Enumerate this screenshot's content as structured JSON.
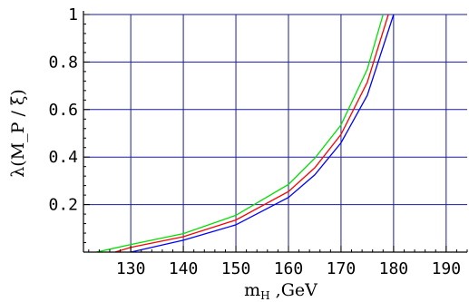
{
  "chart_data": {
    "type": "line",
    "title": "",
    "xlabel": "m_H ,GeV",
    "ylabel": "λ(M_P / ξ)",
    "xlim": [
      121,
      194
    ],
    "ylim": [
      0,
      1
    ],
    "grid": true,
    "colors": {
      "grid": "#1a1aa6",
      "axis": "#000000"
    },
    "x_ticks": [
      130,
      140,
      150,
      160,
      170,
      180,
      190
    ],
    "x_tick_labels": [
      "130",
      "140",
      "150",
      "160",
      "170",
      "180",
      "190"
    ],
    "y_ticks": [
      0.2,
      0.4,
      0.6,
      0.8,
      1
    ],
    "y_tick_labels": [
      "0.2",
      "0.4",
      "0.6",
      "0.8",
      "1"
    ],
    "series": [
      {
        "color": "#00e000",
        "x": [
          123.5,
          130,
          140,
          150,
          160,
          165,
          170,
          175,
          178
        ],
        "y": [
          0.0,
          0.032,
          0.078,
          0.155,
          0.285,
          0.395,
          0.535,
          0.77,
          1.0
        ]
      },
      {
        "color": "#ff0000",
        "x": [
          127,
          130,
          140,
          150,
          160,
          165,
          170,
          175,
          179
        ],
        "y": [
          0.0,
          0.02,
          0.065,
          0.135,
          0.255,
          0.355,
          0.495,
          0.715,
          1.0
        ]
      },
      {
        "color": "#0000ff",
        "x": [
          130,
          140,
          150,
          160,
          165,
          170,
          175,
          180
        ],
        "y": [
          0.0,
          0.05,
          0.115,
          0.23,
          0.325,
          0.46,
          0.66,
          1.0
        ]
      }
    ]
  }
}
